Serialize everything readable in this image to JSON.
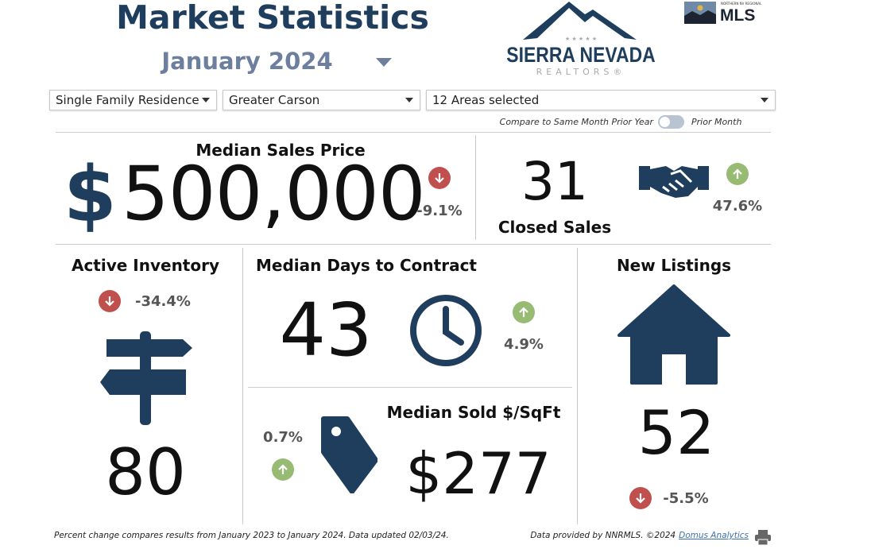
{
  "header": {
    "title": "Market Statistics",
    "month": "January 2024",
    "month_dropdown_icon": "caret-down-icon"
  },
  "logos": {
    "sierra_line1": "SIERRA NEVADA",
    "sierra_line2": "REALTORS®",
    "mls_small": "NORTHERN NV REGIONAL",
    "mls": "MLS"
  },
  "filters": {
    "property_type": "Single Family Residence",
    "region": "Greater Carson",
    "areas": "12 Areas selected"
  },
  "compare": {
    "left_label": "Compare to Same Month Prior Year",
    "right_label": "Prior Month",
    "toggle_on": false
  },
  "colors": {
    "navy": "#1f3d5c",
    "down": "#c0504d",
    "up": "#97bb72"
  },
  "metrics": {
    "median_sales_price": {
      "label": "Median Sales Price",
      "currency": "$",
      "value": "500,000",
      "change": "-9.1%",
      "direction": "down"
    },
    "closed_sales": {
      "label": "Closed Sales",
      "value": "31",
      "change": "47.6%",
      "direction": "up",
      "icon": "handshake-icon"
    },
    "active_inventory": {
      "label": "Active Inventory",
      "value": "80",
      "change": "-34.4%",
      "direction": "down",
      "icon": "signpost-icon"
    },
    "median_days_to_contract": {
      "label": "Median Days to Contract",
      "value": "43",
      "change": "4.9%",
      "direction": "up",
      "icon": "clock-icon"
    },
    "median_sold_sqft": {
      "label": "Median Sold $/SqFt",
      "value": "$277",
      "change": "0.7%",
      "direction": "up",
      "icon": "tag-icon"
    },
    "new_listings": {
      "label": "New Listings",
      "value": "52",
      "change": "-5.5%",
      "direction": "down",
      "icon": "house-icon"
    }
  },
  "footer": {
    "note": "Percent change compares results from January 2023 to January 2024.  Data updated 02/03/24.",
    "provider": "Data provided by NNRMLS. ©2024",
    "link": "Domus Analytics",
    "print_icon": "printer-icon"
  }
}
